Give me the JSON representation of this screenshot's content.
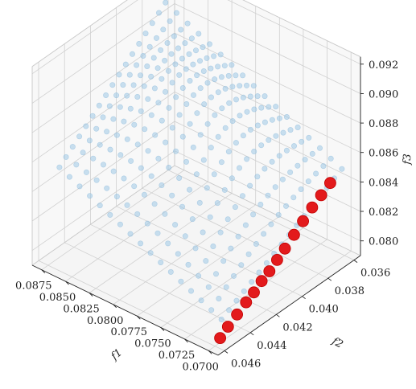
{
  "chart_data": {
    "type": "scatter",
    "projection": "3d",
    "axes": {
      "x": {
        "label": "f1",
        "ticks": [
          "0.0700",
          "0.0725",
          "0.0750",
          "0.0775",
          "0.0800",
          "0.0825",
          "0.0850",
          "0.0875"
        ],
        "range": [
          0.069,
          0.0885
        ]
      },
      "y": {
        "label": "f2",
        "ticks": [
          "0.036",
          "0.038",
          "0.040",
          "0.042",
          "0.044",
          "0.046"
        ],
        "range": [
          0.0355,
          0.0465
        ]
      },
      "z": {
        "label": "f3",
        "ticks": [
          "0.080",
          "0.082",
          "0.084",
          "0.086",
          "0.088",
          "0.090",
          "0.092"
        ],
        "range": [
          0.079,
          0.0925
        ]
      }
    },
    "grid": true,
    "series": [
      {
        "kind": "surface-samples",
        "color": "#9ec8e6",
        "u_range": [
          0,
          1
        ],
        "v_range": [
          0,
          1
        ],
        "rows": 17,
        "cols": 17,
        "corners": {
          "u0v0": {
            "f1": 0.0885,
            "f2": 0.0362,
            "f3": 0.0905
          },
          "u1v0": {
            "f1": 0.087,
            "f2": 0.0455,
            "f3": 0.0855
          },
          "u0v1": {
            "f1": 0.07,
            "f2": 0.0362,
            "f3": 0.085
          },
          "u1v1": {
            "f1": 0.07,
            "f2": 0.0455,
            "f3": 0.0805
          }
        },
        "bulge": 0.0035
      },
      {
        "kind": "highlighted",
        "color": "#e31a1c",
        "points": [
          {
            "f1": 0.07,
            "f2": 0.0456,
            "f3": 0.0793
          },
          {
            "f1": 0.07,
            "f2": 0.045,
            "f3": 0.0797
          },
          {
            "f1": 0.07,
            "f2": 0.0443,
            "f3": 0.0801
          },
          {
            "f1": 0.07,
            "f2": 0.0436,
            "f3": 0.0805
          },
          {
            "f1": 0.07,
            "f2": 0.043,
            "f3": 0.0808
          },
          {
            "f1": 0.07,
            "f2": 0.0424,
            "f3": 0.0812
          },
          {
            "f1": 0.07,
            "f2": 0.0418,
            "f3": 0.0815
          },
          {
            "f1": 0.07,
            "f2": 0.0412,
            "f3": 0.0819
          },
          {
            "f1": 0.07,
            "f2": 0.0406,
            "f3": 0.0823
          },
          {
            "f1": 0.07,
            "f2": 0.0399,
            "f3": 0.0828
          },
          {
            "f1": 0.07,
            "f2": 0.0392,
            "f3": 0.0833
          },
          {
            "f1": 0.07,
            "f2": 0.0385,
            "f3": 0.0838
          },
          {
            "f1": 0.07,
            "f2": 0.0378,
            "f3": 0.0842
          },
          {
            "f1": 0.07,
            "f2": 0.0371,
            "f3": 0.0846
          }
        ]
      }
    ]
  }
}
